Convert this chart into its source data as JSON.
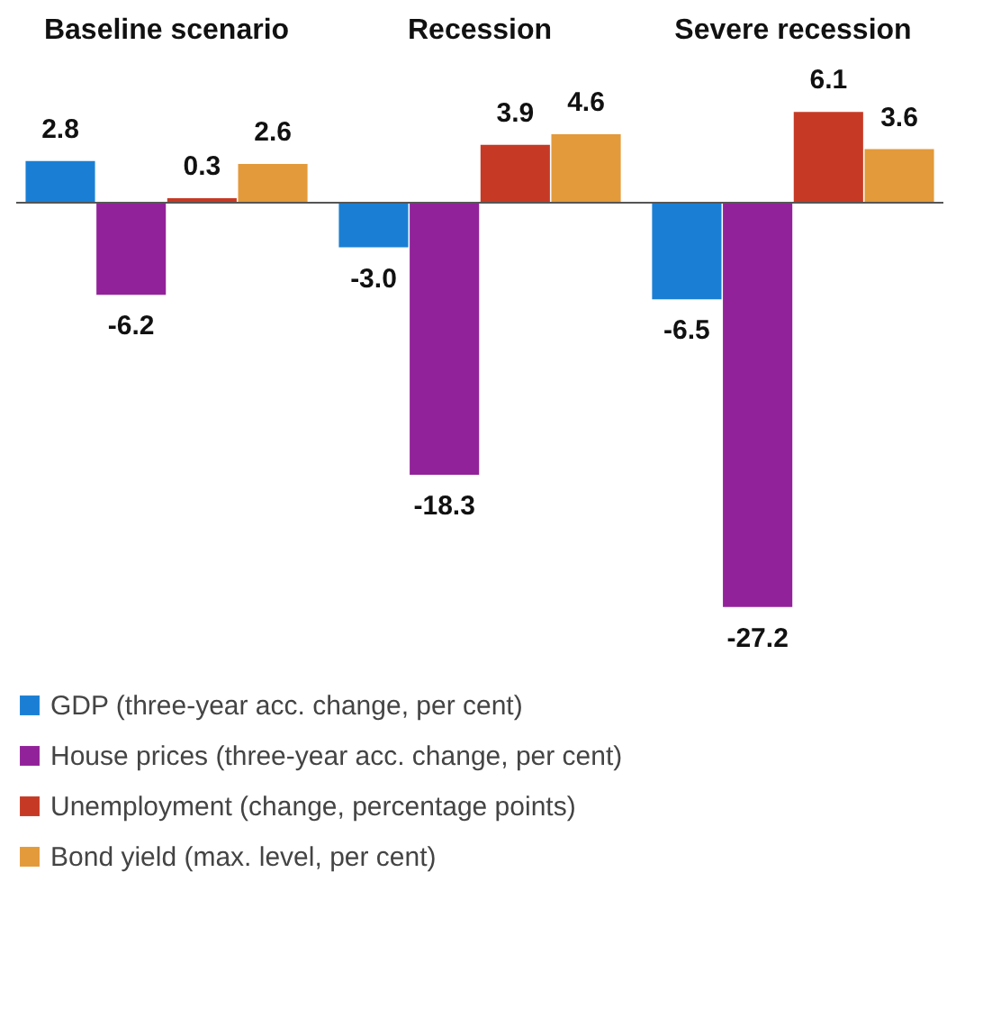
{
  "chart_data": {
    "type": "bar",
    "categories": [
      "Baseline scenario",
      "Recession",
      "Severe recession"
    ],
    "series": [
      {
        "name": "GDP (three-year acc. change, per cent)",
        "color": "#1a7fd4",
        "values": [
          2.8,
          -3.0,
          -6.5
        ],
        "value_labels": [
          "2.8",
          "-3.0",
          "-6.5"
        ]
      },
      {
        "name": "House prices (three-year acc. change, per cent)",
        "color": "#92229a",
        "values": [
          -6.2,
          -18.3,
          -27.2
        ],
        "value_labels": [
          "-6.2",
          "-18.3",
          "-27.2"
        ]
      },
      {
        "name": "Unemployment (change, percentage points)",
        "color": "#c63a25",
        "values": [
          0.3,
          3.9,
          6.1
        ],
        "value_labels": [
          "0.3",
          "3.9",
          "6.1"
        ]
      },
      {
        "name": "Bond yield (max. level, per cent)",
        "color": "#e39a3a",
        "values": [
          2.6,
          4.6,
          3.6
        ],
        "value_labels": [
          "2.6",
          "4.6",
          "3.6"
        ]
      }
    ],
    "legend": "bottom"
  }
}
